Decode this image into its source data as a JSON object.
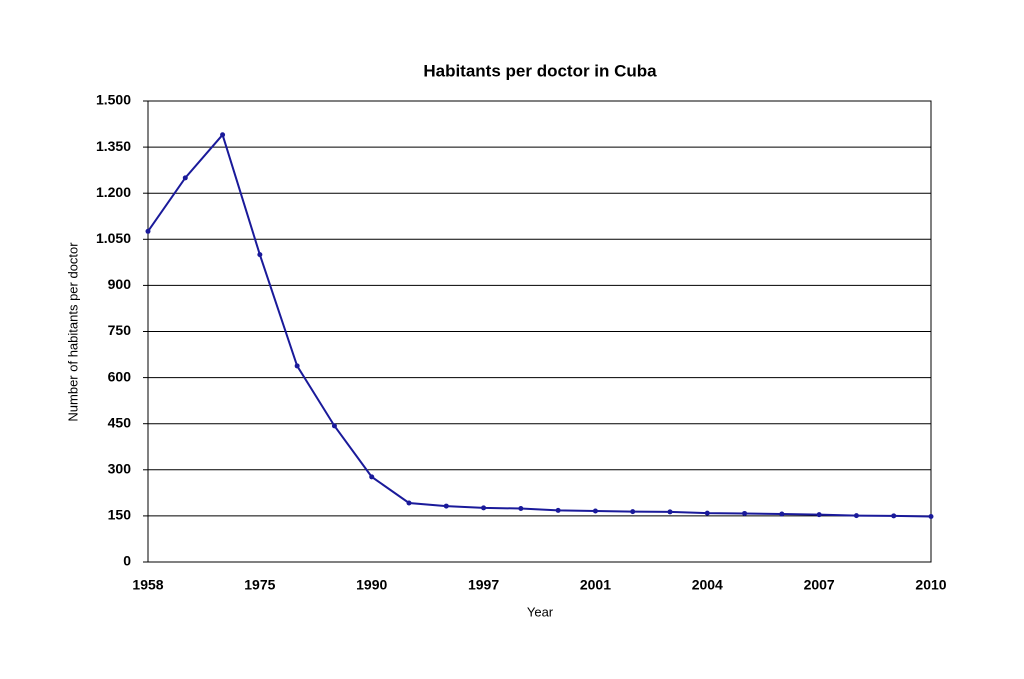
{
  "chart_data": {
    "type": "line",
    "title": "Habitants per doctor in Cuba",
    "x_label": "Year",
    "y_label": "Number of habitants per doctor",
    "categories": [
      "1958",
      null,
      null,
      "1975",
      null,
      null,
      "1990",
      null,
      null,
      "1997",
      null,
      null,
      "2001",
      null,
      null,
      "2004",
      null,
      null,
      "2007",
      null,
      null,
      "2010"
    ],
    "series": [
      {
        "name": "Habitants per doctor",
        "color": "#1a1a9a",
        "values": [
          1076,
          1250,
          1390,
          1000,
          638,
          443,
          277,
          192,
          182,
          176,
          174,
          168,
          166,
          164,
          163,
          159,
          158,
          156,
          154,
          151,
          150,
          148
        ]
      }
    ],
    "ylim": [
      0,
      1500
    ],
    "yticks": [
      0,
      150,
      300,
      450,
      600,
      750,
      900,
      {
        "value": 1050,
        "label": "1.050"
      },
      {
        "value": 1200,
        "label": "1.200"
      },
      {
        "value": 1350,
        "label": "1.350"
      },
      {
        "value": 1500,
        "label": "1.500"
      }
    ],
    "grid": true
  }
}
